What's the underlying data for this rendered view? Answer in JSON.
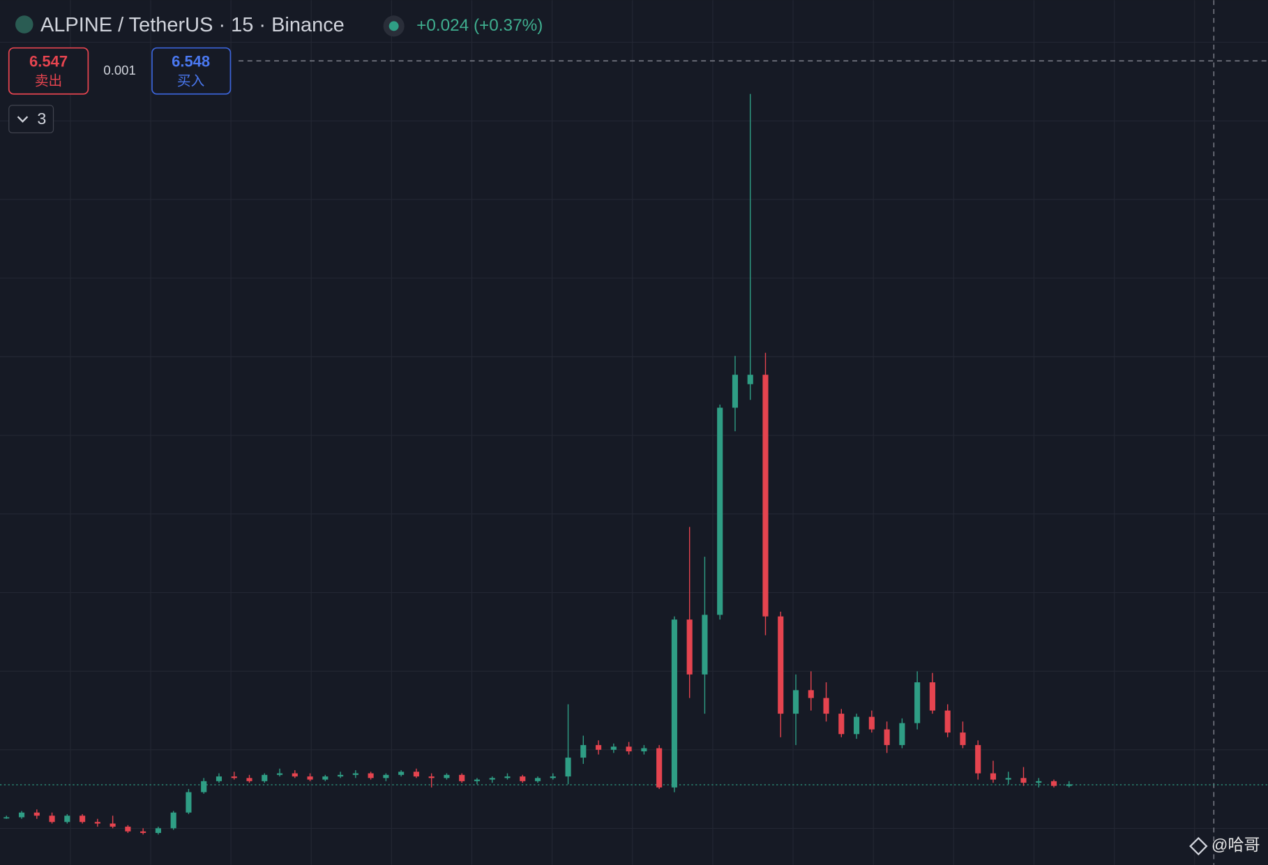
{
  "chart_data": {
    "type": "candlestick",
    "title": "ALPINE / TetherUS · 15 · Binance",
    "change": "+0.024 (+0.37%)",
    "sell_price": 6.547,
    "sell_label": "卖出",
    "spread": 0.001,
    "buy_price": 6.548,
    "buy_label": "买入",
    "indicator_count": 3,
    "watermark": "@哈哥",
    "up_color": "#2f9e85",
    "down_color": "#e5444f",
    "ylim": [
      6.037,
      11.547
    ],
    "open": [
      6.34,
      6.34,
      6.37,
      6.35,
      6.31,
      6.35,
      6.31,
      6.3,
      6.28,
      6.25,
      6.24,
      6.27,
      6.37,
      6.5,
      6.57,
      6.6,
      6.59,
      6.57,
      6.61,
      6.62,
      6.6,
      6.58,
      6.6,
      6.61,
      6.62,
      6.59,
      6.61,
      6.63,
      6.6,
      6.59,
      6.61,
      6.57,
      6.58,
      6.59,
      6.6,
      6.57,
      6.59,
      6.6,
      6.72,
      6.8,
      6.77,
      6.79,
      6.76,
      6.78,
      6.53,
      7.6,
      7.25,
      7.63,
      8.95,
      9.1,
      9.16,
      7.62,
      7.0,
      7.15,
      7.1,
      7.0,
      6.87,
      6.98,
      6.9,
      6.8,
      6.94,
      7.2,
      7.02,
      6.88,
      6.8,
      6.62,
      6.58,
      6.59,
      6.56,
      6.57,
      6.54
    ],
    "high": [
      6.35,
      6.38,
      6.39,
      6.37,
      6.36,
      6.36,
      6.33,
      6.35,
      6.29,
      6.27,
      6.28,
      6.38,
      6.52,
      6.59,
      6.62,
      6.63,
      6.61,
      6.62,
      6.65,
      6.64,
      6.62,
      6.61,
      6.63,
      6.64,
      6.63,
      6.62,
      6.64,
      6.65,
      6.62,
      6.62,
      6.62,
      6.59,
      6.6,
      6.62,
      6.61,
      6.6,
      6.62,
      7.06,
      6.86,
      6.83,
      6.81,
      6.82,
      6.8,
      6.8,
      7.62,
      8.19,
      8.0,
      8.97,
      9.28,
      10.95,
      9.3,
      7.65,
      7.25,
      7.27,
      7.2,
      7.03,
      7.0,
      7.02,
      6.95,
      6.97,
      7.27,
      7.26,
      7.06,
      6.95,
      6.83,
      6.7,
      6.63,
      6.66,
      6.59,
      6.58,
      6.57
    ],
    "low": [
      6.33,
      6.33,
      6.33,
      6.3,
      6.3,
      6.3,
      6.28,
      6.27,
      6.24,
      6.23,
      6.23,
      6.26,
      6.36,
      6.49,
      6.56,
      6.58,
      6.56,
      6.56,
      6.6,
      6.59,
      6.57,
      6.57,
      6.59,
      6.59,
      6.58,
      6.57,
      6.6,
      6.59,
      6.53,
      6.58,
      6.56,
      6.55,
      6.56,
      6.58,
      6.56,
      6.56,
      6.58,
      6.55,
      6.68,
      6.74,
      6.75,
      6.74,
      6.74,
      6.52,
      6.5,
      7.1,
      7.0,
      7.6,
      8.8,
      9.0,
      7.5,
      6.85,
      6.8,
      7.02,
      6.95,
      6.85,
      6.84,
      6.88,
      6.75,
      6.78,
      6.9,
      7.0,
      6.85,
      6.78,
      6.58,
      6.56,
      6.55,
      6.54,
      6.53,
      6.53,
      6.53
    ],
    "close": [
      6.34,
      6.37,
      6.35,
      6.31,
      6.35,
      6.31,
      6.3,
      6.28,
      6.25,
      6.24,
      6.27,
      6.37,
      6.5,
      6.57,
      6.6,
      6.59,
      6.57,
      6.61,
      6.62,
      6.6,
      6.58,
      6.6,
      6.61,
      6.62,
      6.59,
      6.61,
      6.63,
      6.6,
      6.59,
      6.61,
      6.57,
      6.58,
      6.59,
      6.6,
      6.57,
      6.59,
      6.6,
      6.72,
      6.8,
      6.77,
      6.79,
      6.76,
      6.78,
      6.53,
      7.6,
      7.25,
      7.63,
      8.95,
      9.16,
      9.16,
      7.62,
      7.0,
      7.15,
      7.1,
      7.0,
      6.87,
      6.98,
      6.9,
      6.8,
      6.94,
      7.2,
      7.02,
      6.88,
      6.8,
      6.62,
      6.58,
      6.59,
      6.56,
      6.57,
      6.54,
      6.55
    ]
  }
}
